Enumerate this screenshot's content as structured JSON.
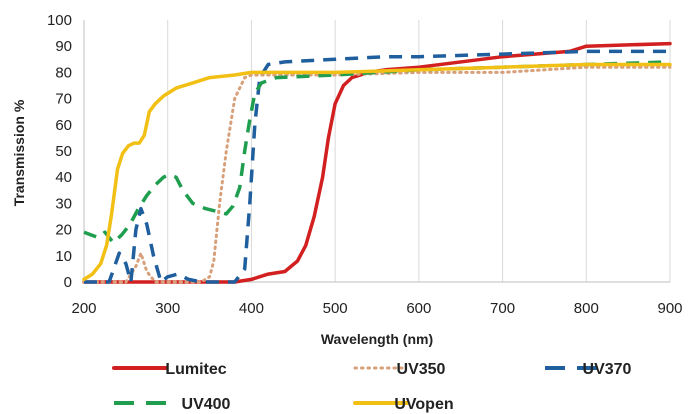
{
  "chart_data": {
    "type": "line",
    "title": "",
    "xlabel": "Wavelength (nm)",
    "ylabel": "Transmission %",
    "xlim": [
      200,
      900
    ],
    "ylim": [
      0,
      100
    ],
    "x_ticks": [
      200,
      300,
      400,
      500,
      600,
      700,
      800,
      900
    ],
    "y_ticks": [
      0,
      10,
      20,
      30,
      40,
      50,
      60,
      70,
      80,
      90,
      100
    ],
    "grid": "vertical",
    "legend_position": "bottom",
    "series": [
      {
        "name": "Lumitec",
        "color": "#d21f1f",
        "dash": "solid",
        "points": [
          [
            200,
            0
          ],
          [
            380,
            0
          ],
          [
            400,
            1
          ],
          [
            420,
            3
          ],
          [
            440,
            4
          ],
          [
            455,
            8
          ],
          [
            465,
            14
          ],
          [
            475,
            25
          ],
          [
            485,
            40
          ],
          [
            492,
            55
          ],
          [
            500,
            68
          ],
          [
            510,
            75
          ],
          [
            520,
            78
          ],
          [
            540,
            80
          ],
          [
            560,
            81
          ],
          [
            600,
            82
          ],
          [
            700,
            86
          ],
          [
            780,
            88
          ],
          [
            800,
            90
          ],
          [
            900,
            91
          ]
        ]
      },
      {
        "name": "UV350",
        "color": "#d7a07a",
        "dash": "dotted",
        "points": [
          [
            200,
            0
          ],
          [
            250,
            0
          ],
          [
            262,
            6
          ],
          [
            268,
            11
          ],
          [
            275,
            4
          ],
          [
            285,
            0
          ],
          [
            340,
            0
          ],
          [
            350,
            2
          ],
          [
            355,
            8
          ],
          [
            362,
            30
          ],
          [
            370,
            50
          ],
          [
            380,
            70
          ],
          [
            392,
            78
          ],
          [
            400,
            79
          ],
          [
            500,
            79
          ],
          [
            600,
            80
          ],
          [
            700,
            80
          ],
          [
            800,
            82
          ],
          [
            900,
            82
          ]
        ]
      },
      {
        "name": "UV370",
        "color": "#1f5f9e",
        "dash": "dashed",
        "points": [
          [
            200,
            0
          ],
          [
            230,
            0
          ],
          [
            242,
            11
          ],
          [
            250,
            7
          ],
          [
            256,
            0
          ],
          [
            262,
            20
          ],
          [
            268,
            28
          ],
          [
            275,
            22
          ],
          [
            283,
            10
          ],
          [
            292,
            0
          ],
          [
            300,
            2
          ],
          [
            312,
            3
          ],
          [
            325,
            1
          ],
          [
            340,
            0
          ],
          [
            380,
            0
          ],
          [
            392,
            5
          ],
          [
            398,
            30
          ],
          [
            404,
            60
          ],
          [
            410,
            78
          ],
          [
            420,
            83
          ],
          [
            440,
            84
          ],
          [
            500,
            85
          ],
          [
            560,
            86
          ],
          [
            600,
            86
          ],
          [
            700,
            87
          ],
          [
            800,
            88
          ],
          [
            900,
            88
          ]
        ]
      },
      {
        "name": "UV400",
        "color": "#1f9e4f",
        "dash": "dashed",
        "points": [
          [
            200,
            19
          ],
          [
            208,
            18
          ],
          [
            217,
            17
          ],
          [
            225,
            19
          ],
          [
            235,
            15
          ],
          [
            245,
            18
          ],
          [
            255,
            22
          ],
          [
            265,
            28
          ],
          [
            275,
            33
          ],
          [
            285,
            37
          ],
          [
            295,
            40
          ],
          [
            302,
            41
          ],
          [
            310,
            40
          ],
          [
            318,
            35
          ],
          [
            330,
            30
          ],
          [
            345,
            28
          ],
          [
            358,
            27
          ],
          [
            370,
            26
          ],
          [
            378,
            29
          ],
          [
            386,
            36
          ],
          [
            392,
            50
          ],
          [
            398,
            62
          ],
          [
            404,
            72
          ],
          [
            412,
            76
          ],
          [
            430,
            78
          ],
          [
            500,
            79
          ],
          [
            600,
            81
          ],
          [
            700,
            82
          ],
          [
            800,
            83
          ],
          [
            900,
            84
          ]
        ]
      },
      {
        "name": "UVopen",
        "color": "#f2c014",
        "dash": "solid",
        "points": [
          [
            200,
            1
          ],
          [
            210,
            3
          ],
          [
            220,
            7
          ],
          [
            227,
            14
          ],
          [
            233,
            26
          ],
          [
            240,
            43
          ],
          [
            246,
            49
          ],
          [
            253,
            52
          ],
          [
            260,
            53
          ],
          [
            266,
            53
          ],
          [
            272,
            56
          ],
          [
            278,
            65
          ],
          [
            285,
            68
          ],
          [
            295,
            71
          ],
          [
            310,
            74
          ],
          [
            330,
            76
          ],
          [
            350,
            78
          ],
          [
            380,
            79
          ],
          [
            400,
            80
          ],
          [
            500,
            80
          ],
          [
            600,
            81
          ],
          [
            700,
            82
          ],
          [
            800,
            83
          ],
          [
            900,
            83
          ]
        ]
      }
    ]
  }
}
